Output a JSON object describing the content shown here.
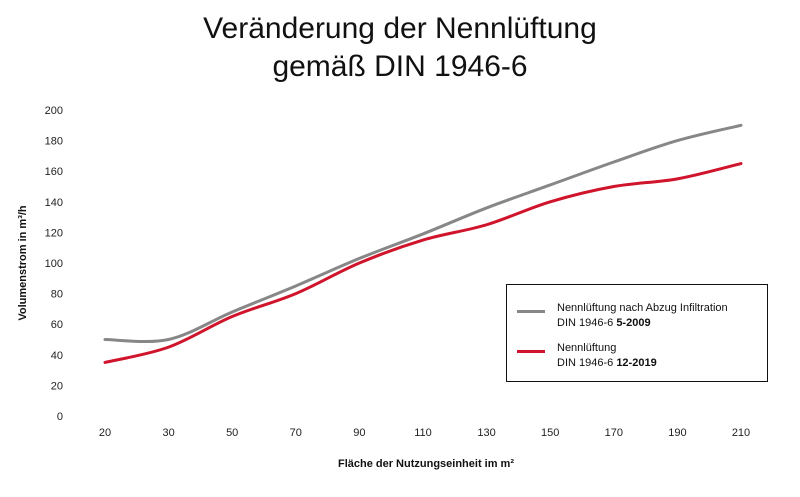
{
  "chart_data": {
    "type": "line",
    "title_line1": "Veränderung der Nennlüftung",
    "title_line2": "gemäß DIN 1946-6",
    "xlabel": "Fläche der Nutzungseinheit im m²",
    "ylabel": "Volumenstrom  in m³/h",
    "x": [
      20,
      30,
      50,
      70,
      90,
      110,
      130,
      150,
      170,
      190,
      210
    ],
    "ylim": [
      0,
      200
    ],
    "yticks": [
      0,
      20,
      40,
      60,
      80,
      100,
      120,
      140,
      160,
      180,
      200
    ],
    "grid": false,
    "legend_position": "bottom-right",
    "series": [
      {
        "name_line1": "Nennlüftung nach Abzug Infiltration",
        "name_line2_prefix": "DIN 1946-6 ",
        "name_line2_bold": "5-2009",
        "color": "#878787",
        "values": [
          50,
          50,
          68,
          85,
          103,
          119,
          136,
          151,
          166,
          180,
          190
        ]
      },
      {
        "name_line1": "Nennlüftung",
        "name_line2_prefix": "DIN 1946-6 ",
        "name_line2_bold": "12-2019",
        "color": "#d0142c",
        "values": [
          35,
          45,
          65,
          80,
          100,
          115,
          125,
          140,
          150,
          155,
          165
        ]
      }
    ]
  }
}
